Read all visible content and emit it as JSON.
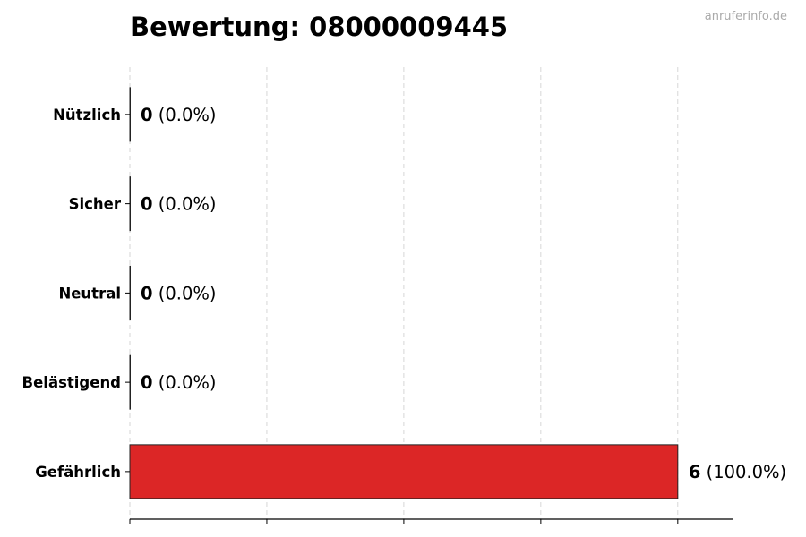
{
  "chart_data": {
    "type": "bar",
    "orientation": "horizontal",
    "title": "Bewertung: 08000009445",
    "watermark": "anruferinfo.de",
    "categories": [
      "Nützlich",
      "Sicher",
      "Neutral",
      "Belästigend",
      "Gefährlich"
    ],
    "values": [
      0,
      0,
      0,
      0,
      6
    ],
    "labels": [
      {
        "count": "0",
        "pct": "(0.0%)"
      },
      {
        "count": "0",
        "pct": "(0.0%)"
      },
      {
        "count": "0",
        "pct": "(0.0%)"
      },
      {
        "count": "0",
        "pct": "(0.0%)"
      },
      {
        "count": "6",
        "pct": "(100.0%)"
      }
    ],
    "xlim": [
      0,
      6.6
    ],
    "xticks": [
      0,
      1.5,
      3,
      4.5,
      6
    ],
    "grid": "x dashed",
    "bar_color": "#dc2626",
    "xlabel": "",
    "ylabel": ""
  }
}
